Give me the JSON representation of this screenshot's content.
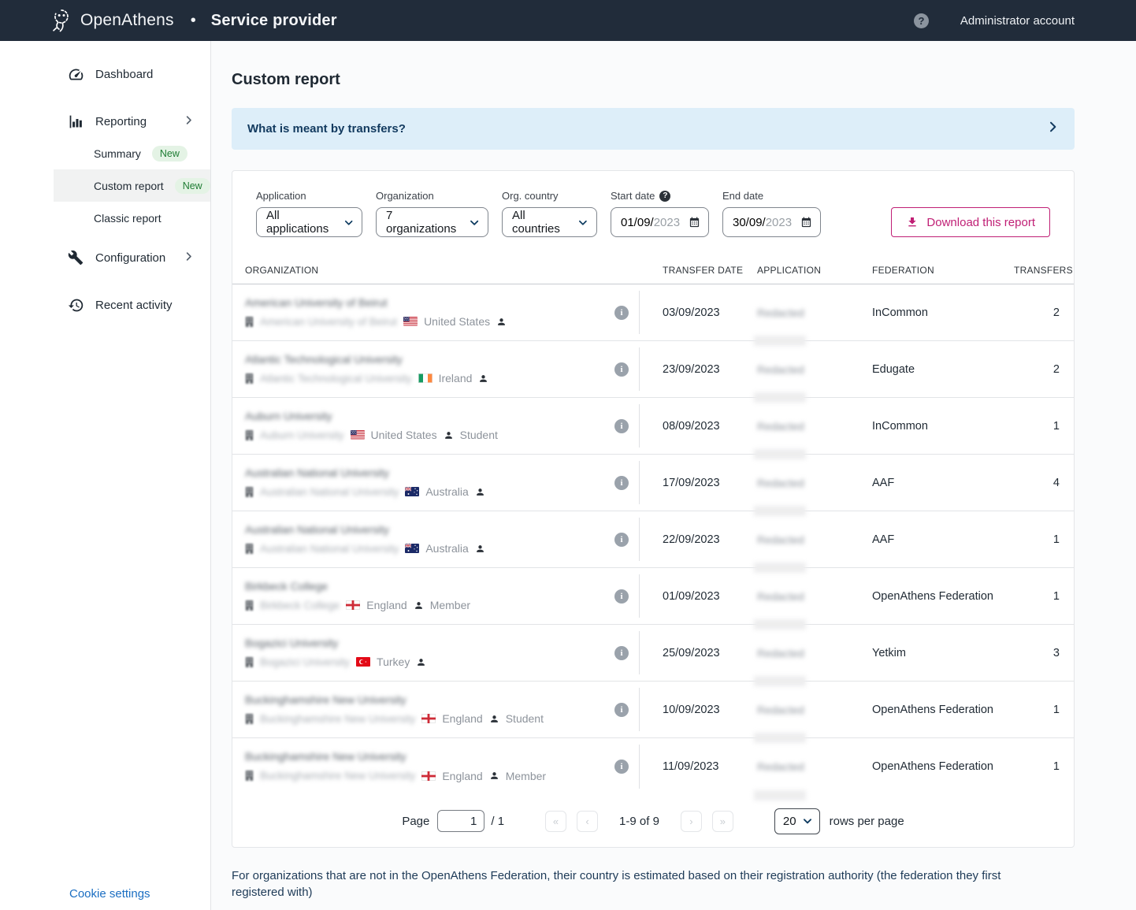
{
  "header": {
    "brand": "OpenAthens",
    "separator": "•",
    "product": "Service provider",
    "help_glyph": "?",
    "account": "Administrator account"
  },
  "sidebar": {
    "dashboard": "Dashboard",
    "reporting": "Reporting",
    "summary": "Summary",
    "summary_badge": "New",
    "custom_report": "Custom report",
    "custom_report_badge": "New",
    "classic_report": "Classic report",
    "configuration": "Configuration",
    "recent_activity": "Recent activity",
    "cookie_settings": "Cookie settings"
  },
  "page": {
    "title": "Custom report",
    "banner": "What is meant by transfers?",
    "footnote": "For organizations that are not in the OpenAthens Federation, their country is estimated based on their registration authority (the federation they first registered with)"
  },
  "filters": {
    "application_label": "Application",
    "application_value": "All applications",
    "organization_label": "Organization",
    "organization_value": "7 organizations",
    "country_label": "Org. country",
    "country_value": "All countries",
    "start_label": "Start date",
    "start_value": "01/09/",
    "start_year": "2023",
    "end_label": "End date",
    "end_value": "30/09/",
    "end_year": "2023",
    "download_label": "Download this report"
  },
  "table": {
    "headers": {
      "organization": "ORGANIZATION",
      "date": "TRANSFER DATE",
      "application": "APPLICATION",
      "federation": "FEDERATION",
      "transfers": "TRANSFERS"
    },
    "rows": [
      {
        "org": "American University of Beirut",
        "flag": "us",
        "country": "United States",
        "role": "",
        "date": "03/09/2023",
        "app": "Redacted",
        "federation": "InCommon",
        "transfers": "2"
      },
      {
        "org": "Atlantic Technological University",
        "flag": "ie",
        "country": "Ireland",
        "role": "",
        "date": "23/09/2023",
        "app": "Redacted",
        "federation": "Edugate",
        "transfers": "2"
      },
      {
        "org": "Auburn University",
        "flag": "us",
        "country": "United States",
        "role": "Student",
        "date": "08/09/2023",
        "app": "Redacted",
        "federation": "InCommon",
        "transfers": "1"
      },
      {
        "org": "Australian National University",
        "flag": "au",
        "country": "Australia",
        "role": "",
        "date": "17/09/2023",
        "app": "Redacted",
        "federation": "AAF",
        "transfers": "4"
      },
      {
        "org": "Australian National University",
        "flag": "au",
        "country": "Australia",
        "role": "",
        "date": "22/09/2023",
        "app": "Redacted",
        "federation": "AAF",
        "transfers": "1"
      },
      {
        "org": "Birkbeck College",
        "flag": "england",
        "country": "England",
        "role": "Member",
        "date": "01/09/2023",
        "app": "Redacted",
        "federation": "OpenAthens Federation",
        "transfers": "1"
      },
      {
        "org": "Bogazici University",
        "flag": "tr",
        "country": "Turkey",
        "role": "",
        "date": "25/09/2023",
        "app": "Redacted",
        "federation": "Yetkim",
        "transfers": "3"
      },
      {
        "org": "Buckinghamshire New University",
        "flag": "england",
        "country": "England",
        "role": "Student",
        "date": "10/09/2023",
        "app": "Redacted",
        "federation": "OpenAthens Federation",
        "transfers": "1"
      },
      {
        "org": "Buckinghamshire New University",
        "flag": "england",
        "country": "England",
        "role": "Member",
        "date": "11/09/2023",
        "app": "Redacted",
        "federation": "OpenAthens Federation",
        "transfers": "1"
      }
    ]
  },
  "pagination": {
    "page_label": "Page",
    "page_value": "1",
    "total": "/ 1",
    "first": "«",
    "prev": "‹",
    "range": "1-9 of 9",
    "next": "›",
    "last": "»",
    "per_page": "20",
    "per_page_label": "rows per page"
  }
}
